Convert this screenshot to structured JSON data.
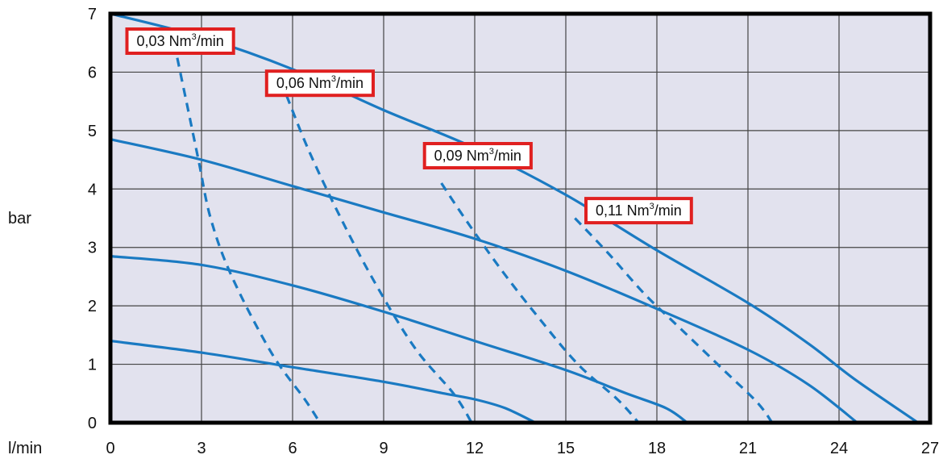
{
  "chart_data": {
    "type": "line",
    "title": "",
    "xlabel": "l/min",
    "ylabel": "bar",
    "xlim": [
      0,
      27
    ],
    "ylim": [
      0,
      7
    ],
    "xticks": [
      "0",
      "3",
      "6",
      "9",
      "12",
      "15",
      "18",
      "21",
      "24",
      "27"
    ],
    "yticks": [
      "0",
      "1",
      "2",
      "3",
      "4",
      "5",
      "6",
      "7"
    ],
    "grid": true,
    "colors": {
      "line": "#1a7ac2",
      "plot_bg": "#e2e2ee",
      "frame": "#000000",
      "grid": "#444444",
      "label_border": "#e02020"
    },
    "series": [
      {
        "style": "solid",
        "points": [
          [
            0,
            7.0
          ],
          [
            3,
            6.6
          ],
          [
            6,
            6.05
          ],
          [
            9,
            5.35
          ],
          [
            12,
            4.7
          ],
          [
            15,
            3.9
          ],
          [
            18,
            2.95
          ],
          [
            21,
            2.05
          ],
          [
            23,
            1.35
          ],
          [
            24.5,
            0.75
          ],
          [
            26.6,
            0
          ]
        ]
      },
      {
        "style": "solid",
        "points": [
          [
            0,
            4.85
          ],
          [
            3,
            4.5
          ],
          [
            6,
            4.05
          ],
          [
            9,
            3.6
          ],
          [
            12,
            3.15
          ],
          [
            15,
            2.6
          ],
          [
            18,
            1.95
          ],
          [
            21,
            1.25
          ],
          [
            23,
            0.65
          ],
          [
            24.6,
            0
          ]
        ]
      },
      {
        "style": "solid",
        "points": [
          [
            0,
            2.85
          ],
          [
            3,
            2.7
          ],
          [
            6,
            2.35
          ],
          [
            9,
            1.9
          ],
          [
            12,
            1.4
          ],
          [
            15,
            0.9
          ],
          [
            17,
            0.5
          ],
          [
            18.3,
            0.25
          ],
          [
            19,
            0
          ]
        ]
      },
      {
        "style": "solid",
        "points": [
          [
            0,
            1.4
          ],
          [
            3,
            1.2
          ],
          [
            6,
            0.95
          ],
          [
            9,
            0.7
          ],
          [
            11,
            0.5
          ],
          [
            12,
            0.4
          ],
          [
            13,
            0.25
          ],
          [
            14,
            0
          ]
        ]
      },
      {
        "style": "dashed",
        "points": [
          [
            2.1,
            6.5
          ],
          [
            2.5,
            5.5
          ],
          [
            2.9,
            4.5
          ],
          [
            3.3,
            3.5
          ],
          [
            4.0,
            2.5
          ],
          [
            5.3,
            1.2
          ],
          [
            6.4,
            0.4
          ],
          [
            6.9,
            0
          ]
        ]
      },
      {
        "style": "dashed",
        "points": [
          [
            5.8,
            5.6
          ],
          [
            6.5,
            4.7
          ],
          [
            7.4,
            3.7
          ],
          [
            8.6,
            2.5
          ],
          [
            10.0,
            1.3
          ],
          [
            11.3,
            0.5
          ],
          [
            11.9,
            0
          ]
        ]
      },
      {
        "style": "dashed",
        "points": [
          [
            10.9,
            4.1
          ],
          [
            11.8,
            3.4
          ],
          [
            12.9,
            2.6
          ],
          [
            14.1,
            1.8
          ],
          [
            15.4,
            1.0
          ],
          [
            16.7,
            0.4
          ],
          [
            17.4,
            0
          ]
        ]
      },
      {
        "style": "dashed",
        "points": [
          [
            15.3,
            3.5
          ],
          [
            16.4,
            2.9
          ],
          [
            17.6,
            2.2
          ],
          [
            18.8,
            1.6
          ],
          [
            20.2,
            0.9
          ],
          [
            21.3,
            0.35
          ],
          [
            21.8,
            0
          ]
        ]
      }
    ],
    "annotations": [
      {
        "text": "0,03 Nm",
        "sup": "3",
        "suffix": "/min",
        "x": 2.3,
        "y": 6.53
      },
      {
        "text": "0,06 Nm",
        "sup": "3",
        "suffix": "/min",
        "x": 6.9,
        "y": 5.81
      },
      {
        "text": "0,09 Nm",
        "sup": "3",
        "suffix": "/min",
        "x": 12.1,
        "y": 4.57
      },
      {
        "text": "0,11 Nm",
        "sup": "3",
        "suffix": "/min",
        "x": 17.4,
        "y": 3.63
      }
    ]
  }
}
